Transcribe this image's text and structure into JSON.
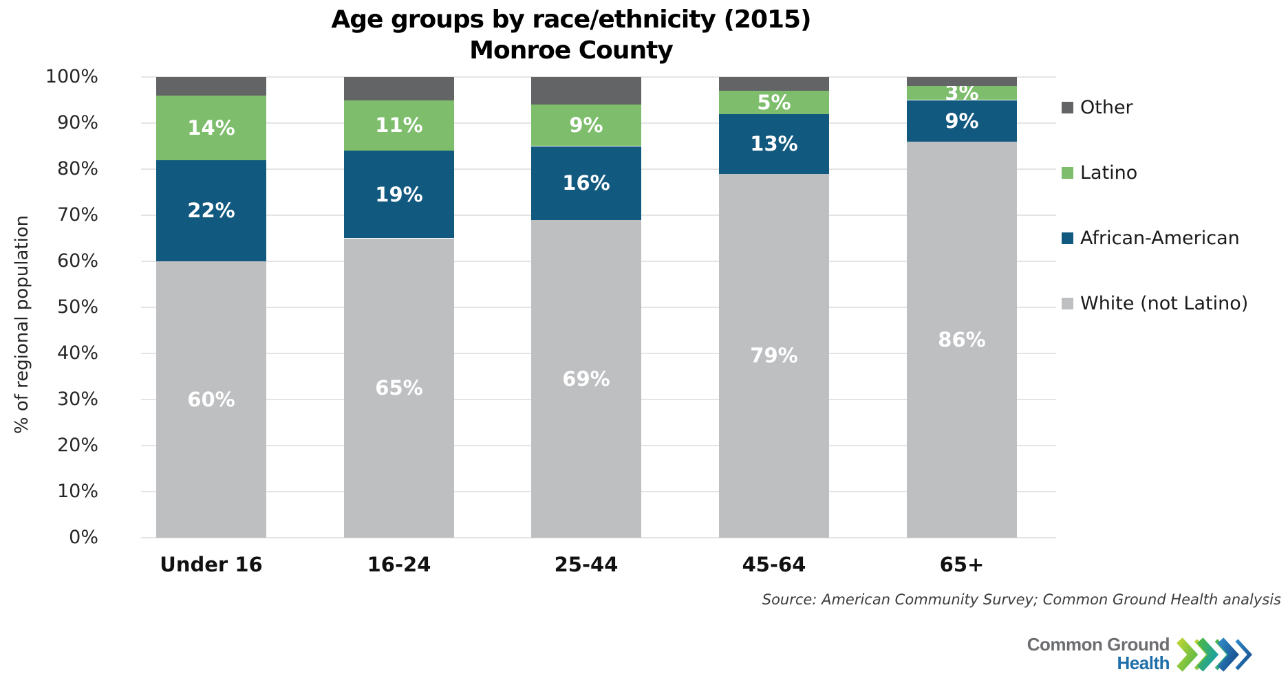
{
  "title": {
    "line1": "Age groups by race/ethnicity (2015)",
    "line2": "Monroe County"
  },
  "y_axis": {
    "title": "% of regional population",
    "ticks": [
      "100%",
      "90%",
      "80%",
      "70%",
      "60%",
      "50%",
      "40%",
      "30%",
      "20%",
      "10%",
      "0%"
    ]
  },
  "legend": {
    "items": [
      {
        "label": "Other",
        "color": "#636466"
      },
      {
        "label": "Latino",
        "color": "#7dbd6b"
      },
      {
        "label": "African-American",
        "color": "#12597f"
      },
      {
        "label": "White (not Latino)",
        "color": "#bebfc1"
      }
    ]
  },
  "source_note": "Source: American Community Survey; Common Ground Health analysis",
  "logo": {
    "name_line1": "Common Ground",
    "name_line2": "Health",
    "chevrons_icon": "triple-chevron-right-icon",
    "name_color": "#6d6e71",
    "health_color": "#1e6fa9"
  },
  "chart_data": {
    "type": "bar",
    "subtype": "stacked-100pct-column",
    "title": "Age groups by race/ethnicity (2015) Monroe County",
    "categories": [
      "Under 16",
      "16-24",
      "25-44",
      "45-64",
      "65+"
    ],
    "series": [
      {
        "name": "White (not Latino)",
        "color": "#bebfc1",
        "values": [
          60,
          65,
          69,
          79,
          86
        ],
        "labels": [
          "60%",
          "65%",
          "69%",
          "79%",
          "86%"
        ]
      },
      {
        "name": "African-American",
        "color": "#12597f",
        "values": [
          22,
          19,
          16,
          13,
          9
        ],
        "labels": [
          "22%",
          "19%",
          "16%",
          "13%",
          "9%"
        ]
      },
      {
        "name": "Latino",
        "color": "#7dbd6b",
        "values": [
          14,
          11,
          9,
          5,
          3
        ],
        "labels": [
          "14%",
          "11%",
          "9%",
          "5%",
          "3%"
        ]
      },
      {
        "name": "Other",
        "color": "#636466",
        "values": [
          4,
          5,
          6,
          3,
          2
        ],
        "labels": [
          "",
          "",
          "",
          "",
          ""
        ]
      }
    ],
    "xlabel": "",
    "ylabel": "% of regional population",
    "ylim": [
      0,
      100
    ],
    "grid": true,
    "legend_position": "right"
  }
}
